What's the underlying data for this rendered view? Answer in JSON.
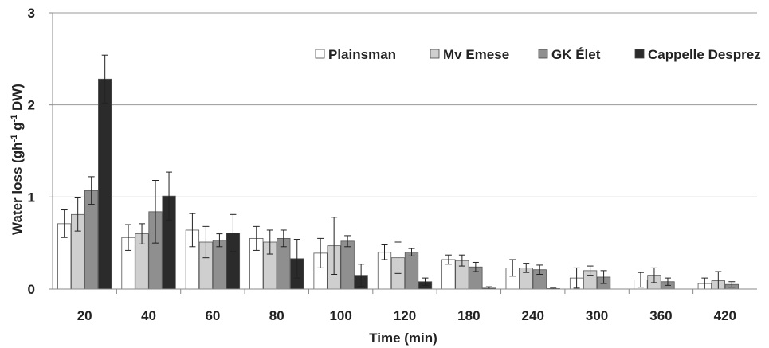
{
  "chart_data": {
    "type": "bar",
    "xlabel": "Time (min)",
    "ylabel_parts": [
      "Water loss (gh",
      "-1",
      " g",
      "-1",
      " DW)"
    ],
    "ylim": [
      0,
      3
    ],
    "yticks": [
      "0",
      "1",
      "2",
      "3"
    ],
    "grid": true,
    "legend_position": "top-right",
    "categories": [
      "20",
      "40",
      "60",
      "80",
      "100",
      "120",
      "180",
      "240",
      "300",
      "360",
      "420"
    ],
    "series": [
      {
        "name": "Plainsman",
        "color": "#ffffff",
        "values": [
          0.71,
          0.56,
          0.64,
          0.55,
          0.39,
          0.4,
          0.32,
          0.23,
          0.12,
          0.1,
          0.06
        ],
        "errors": [
          0.15,
          0.14,
          0.18,
          0.13,
          0.16,
          0.08,
          0.05,
          0.09,
          0.11,
          0.08,
          0.06
        ]
      },
      {
        "name": "Mv Emese",
        "color": "#cfcfcf",
        "values": [
          0.81,
          0.6,
          0.51,
          0.51,
          0.47,
          0.34,
          0.31,
          0.23,
          0.2,
          0.15,
          0.09
        ],
        "errors": [
          0.18,
          0.11,
          0.17,
          0.13,
          0.31,
          0.17,
          0.06,
          0.05,
          0.05,
          0.08,
          0.1
        ]
      },
      {
        "name": "GK Élet",
        "color": "#8f8f8f",
        "values": [
          1.07,
          0.84,
          0.53,
          0.55,
          0.52,
          0.4,
          0.24,
          0.21,
          0.13,
          0.08,
          0.05
        ]
      },
      {
        "name": "Cappelle Desprez",
        "color": "#2b2b2b",
        "values": [
          2.28,
          1.01,
          0.61,
          0.33,
          0.15,
          0.08,
          0.01,
          0.005,
          0.0,
          0.0,
          0.0
        ]
      }
    ],
    "error_notes": "errors parallel to values",
    "series_errors": {
      "GK Élet": [
        0.15,
        0.34,
        0.07,
        0.09,
        0.06,
        0.04,
        0.05,
        0.05,
        0.07,
        0.04,
        0.03
      ],
      "Cappelle Desprez": [
        0.26,
        0.26,
        0.2,
        0.21,
        0.12,
        0.04,
        0.015,
        0.005,
        0.0,
        0.0,
        0.0
      ]
    }
  }
}
